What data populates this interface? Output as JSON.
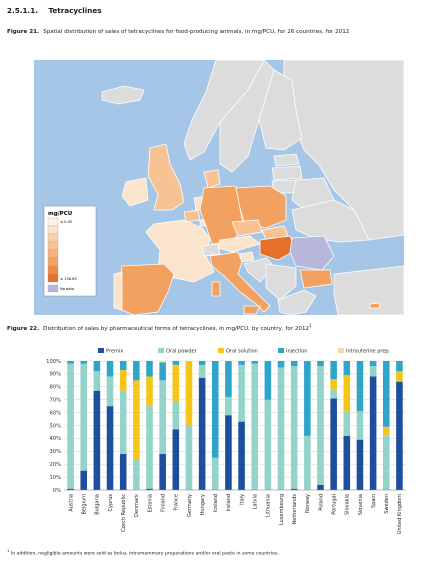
{
  "section": {
    "number": "2.5.1.1.",
    "title": "Tetracyclines"
  },
  "figure21": {
    "label": "Figure 21.",
    "caption": "Spatial distribution of sales of tetracyclines for food-producing animals, in mg/PCU, for 26 countries, for 2012",
    "legend": {
      "title": "mg/PCU",
      "max_label": "≥ 0.05",
      "min_label": "≤ 136.65",
      "nodata_label": "No data"
    },
    "regions": [
      {
        "name": "Iceland",
        "level": "grey"
      },
      {
        "name": "Norway",
        "level": "grey"
      },
      {
        "name": "Sweden",
        "level": "grey"
      },
      {
        "name": "Finland",
        "level": "grey"
      },
      {
        "name": "Estonia",
        "level": "grey"
      },
      {
        "name": "Latvia",
        "level": "grey"
      },
      {
        "name": "Lithuania",
        "level": "grey"
      },
      {
        "name": "Denmark",
        "level": "light"
      },
      {
        "name": "Ireland",
        "level": "pale"
      },
      {
        "name": "United Kingdom",
        "level": "light"
      },
      {
        "name": "Netherlands",
        "level": "pale"
      },
      {
        "name": "Belgium",
        "level": "light"
      },
      {
        "name": "Luxembourg",
        "level": "pale"
      },
      {
        "name": "France",
        "level": "pale"
      },
      {
        "name": "Germany",
        "level": "mid"
      },
      {
        "name": "Poland",
        "level": "mid"
      },
      {
        "name": "Czech Republic",
        "level": "light"
      },
      {
        "name": "Slovakia",
        "level": "light"
      },
      {
        "name": "Austria",
        "level": "pale"
      },
      {
        "name": "Switzerland",
        "level": "grey"
      },
      {
        "name": "Hungary",
        "level": "dark"
      },
      {
        "name": "Romania",
        "level": "nodata"
      },
      {
        "name": "Bulgaria",
        "level": "mid"
      },
      {
        "name": "Slovenia",
        "level": "pale"
      },
      {
        "name": "Croatia",
        "level": "grey"
      },
      {
        "name": "Italy",
        "level": "mid"
      },
      {
        "name": "Portugal",
        "level": "pale"
      },
      {
        "name": "Spain",
        "level": "mid"
      },
      {
        "name": "Greece",
        "level": "grey"
      },
      {
        "name": "Turkey",
        "level": "grey"
      },
      {
        "name": "Cyprus",
        "level": "mid"
      },
      {
        "name": "Malta",
        "level": "grey"
      }
    ]
  },
  "figure22": {
    "label": "Figure 22.",
    "caption": "Distribution of sales by pharmaceutical forms of tetracyclines, in mg/PCU, by country, for 2012",
    "caption_sup": "1"
  },
  "colors": {
    "premix": "#1e4f9c",
    "oral_powder": "#93d3c9",
    "oral_solution": "#f5c518",
    "injection": "#2fa6c9",
    "intrauterine": "#f6d9a8",
    "sea": "#a5c6e6",
    "land_grey": "#dcdcdc",
    "map_pale": "#fbe4cc",
    "map_light": "#f8c393",
    "map_mid": "#f3a160",
    "map_dark": "#e5702c",
    "nodata": "#b7b7da"
  },
  "chart_data": {
    "type": "bar",
    "stacked": true,
    "categories": [
      "Austria",
      "Belgium",
      "Bulgaria",
      "Cyprus",
      "Czech Republic",
      "Denmark",
      "Estonia",
      "Finland",
      "France",
      "Germany",
      "Hungary",
      "Iceland",
      "Ireland",
      "Italy",
      "Latvia",
      "Lithuania",
      "Luxembourg",
      "Netherlands",
      "Norway",
      "Poland",
      "Portugal",
      "Slovakia",
      "Slovenia",
      "Spain",
      "Sweden",
      "United Kingdom"
    ],
    "series": [
      {
        "name": "Premix",
        "values": [
          1,
          15,
          77,
          65,
          28,
          0,
          1,
          28,
          47,
          0,
          87,
          0,
          58,
          53,
          0,
          0,
          0,
          1,
          0,
          4,
          71,
          42,
          39,
          88,
          0,
          84
        ]
      },
      {
        "name": "Oral powder",
        "values": [
          97,
          83,
          15,
          23,
          49,
          24,
          64,
          57,
          22,
          50,
          10,
          25,
          14,
          44,
          98,
          70,
          95,
          95,
          42,
          92,
          7,
          19,
          22,
          8,
          42,
          0
        ]
      },
      {
        "name": "Oral solution",
        "values": [
          0,
          0,
          0,
          0,
          16,
          61,
          23,
          0,
          28,
          50,
          0,
          0,
          0,
          0,
          0,
          0,
          0,
          0,
          0,
          0,
          8,
          28,
          0,
          0,
          7,
          8
        ]
      },
      {
        "name": "Injection",
        "values": [
          2,
          2,
          8,
          12,
          7,
          15,
          12,
          14,
          3,
          0,
          3,
          75,
          28,
          3,
          2,
          30,
          5,
          4,
          58,
          4,
          14,
          11,
          39,
          4,
          51,
          8
        ]
      },
      {
        "name": "Intrauterine prep.",
        "values": [
          0,
          0,
          0,
          0,
          0,
          0,
          0,
          1,
          0,
          0,
          0,
          0,
          0,
          0,
          0,
          0,
          0,
          0,
          0,
          0,
          0,
          0,
          0,
          0,
          0,
          0
        ]
      }
    ],
    "ylim": [
      0,
      100
    ],
    "yticks": [
      "0%",
      "10%",
      "20%",
      "30%",
      "40%",
      "50%",
      "60%",
      "70%",
      "80%",
      "90%",
      "100%"
    ],
    "legend_position": "top",
    "grid": true
  },
  "footnote": {
    "sup": "1",
    "text": "In addition, negligible amounts were sold as bolus, intramammary preparations and/or oral paste in some countries."
  }
}
